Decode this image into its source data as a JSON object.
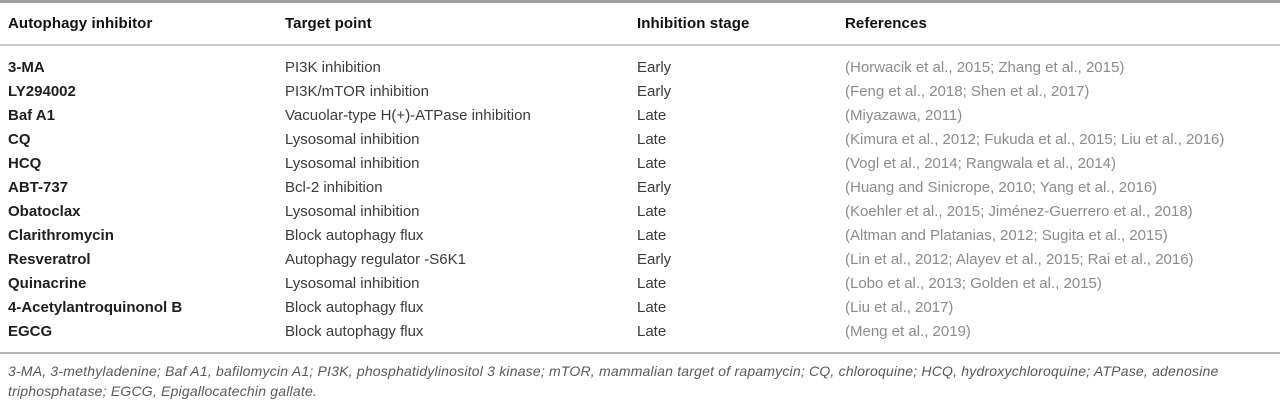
{
  "table": {
    "columns": [
      "Autophagy inhibitor",
      "Target point",
      "Inhibition stage",
      "References"
    ],
    "rows": [
      {
        "inhibitor": "3-MA",
        "target": "PI3K inhibition",
        "stage": "Early",
        "references": "(Horwacik et al., 2015; Zhang et al., 2015)"
      },
      {
        "inhibitor": "LY294002",
        "target": "PI3K/mTOR inhibition",
        "stage": "Early",
        "references": "(Feng et al., 2018; Shen et al., 2017)"
      },
      {
        "inhibitor": "Baf A1",
        "target": "Vacuolar-type H(+)-ATPase inhibition",
        "stage": "Late",
        "references": "(Miyazawa, 2011)"
      },
      {
        "inhibitor": "CQ",
        "target": "Lysosomal inhibition",
        "stage": "Late",
        "references": "(Kimura et al., 2012; Fukuda et al., 2015; Liu et al., 2016)"
      },
      {
        "inhibitor": "HCQ",
        "target": "Lysosomal inhibition",
        "stage": "Late",
        "references": "(Vogl et al., 2014; Rangwala et al., 2014)"
      },
      {
        "inhibitor": "ABT-737",
        "target": "Bcl-2 inhibition",
        "stage": "Early",
        "references": "(Huang and Sinicrope, 2010; Yang et al., 2016)"
      },
      {
        "inhibitor": "Obatoclax",
        "target": "Lysosomal inhibition",
        "stage": "Late",
        "references": "(Koehler et al., 2015; Jiménez-Guerrero et al., 2018)"
      },
      {
        "inhibitor": "Clarithromycin",
        "target": "Block autophagy flux",
        "stage": "Late",
        "references": "(Altman and Platanias, 2012; Sugita et al., 2015)"
      },
      {
        "inhibitor": "Resveratrol",
        "target": "Autophagy regulator -S6K1",
        "stage": "Early",
        "references": "(Lin et al., 2012; Alayev et al., 2015; Rai et al., 2016)"
      },
      {
        "inhibitor": "Quinacrine",
        "target": "Lysosomal inhibition",
        "stage": "Late",
        "references": "(Lobo et al., 2013; Golden et al., 2015)"
      },
      {
        "inhibitor": "4-Acetylantroquinonol B",
        "target": "Block autophagy flux",
        "stage": "Late",
        "references": "(Liu et al., 2017)"
      },
      {
        "inhibitor": "EGCG",
        "target": "Block autophagy flux",
        "stage": "Late",
        "references": "(Meng et al., 2019)"
      }
    ],
    "footnote": "3-MA, 3-methyladenine; Baf A1, bafilomycin A1; PI3K, phosphatidylinositol 3 kinase; mTOR, mammalian target of rapamycin; CQ, chloroquine; HCQ, hydroxychloroquine; ATPase, adenosine triphosphatase; EGCG, Epigallocatechin gallate."
  },
  "colors": {
    "header_text": "#111111",
    "inhibitor_text": "#1f1f1f",
    "body_text": "#3c3c3c",
    "reference_text": "#8c8c8c",
    "footnote_text": "#5a5a5a",
    "top_rule": "#9e9e9e",
    "header_rule": "#c9c9c9",
    "footnote_rule": "#b5b5b5"
  }
}
